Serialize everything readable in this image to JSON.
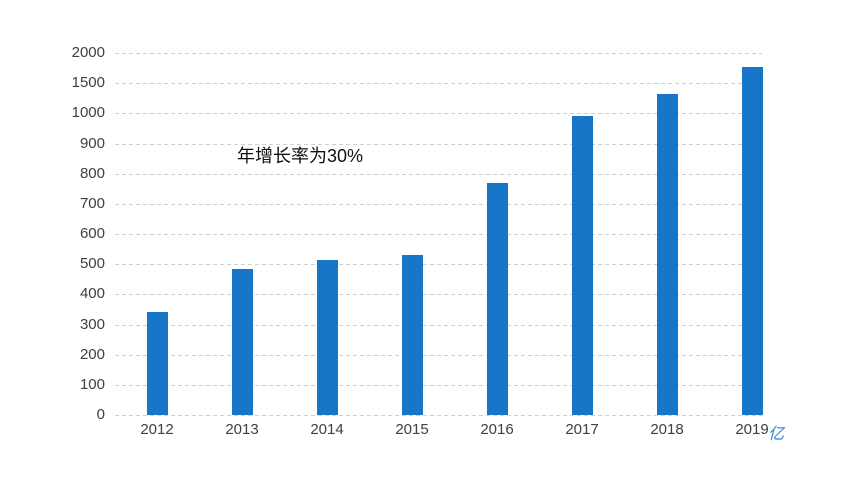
{
  "chart_data": {
    "type": "bar",
    "title": "",
    "categories": [
      "2012",
      "2013",
      "2014",
      "2015",
      "2016",
      "2017",
      "2018",
      "2019"
    ],
    "values": [
      340,
      485,
      515,
      530,
      770,
      990,
      1320,
      1760
    ],
    "annotation": "年增长率为30%",
    "y_unit_label": "亿",
    "yticks": [
      0,
      100,
      200,
      300,
      400,
      500,
      600,
      700,
      800,
      900,
      1000,
      1500,
      2000
    ],
    "y_scale": "piecewise: 0-1000 in steps of 100, then 1500 and 2000 at equal tick spacing",
    "grid": "horizontal dashed lines, on",
    "legend": "none",
    "xlabel": "",
    "ylabel": "",
    "bar_color": "#1876c8",
    "gridline_color": "#d0d0d0",
    "tick_label_color": "#404040",
    "annotation_color": "#111111",
    "unit_label_color": "#2e7fd6"
  }
}
